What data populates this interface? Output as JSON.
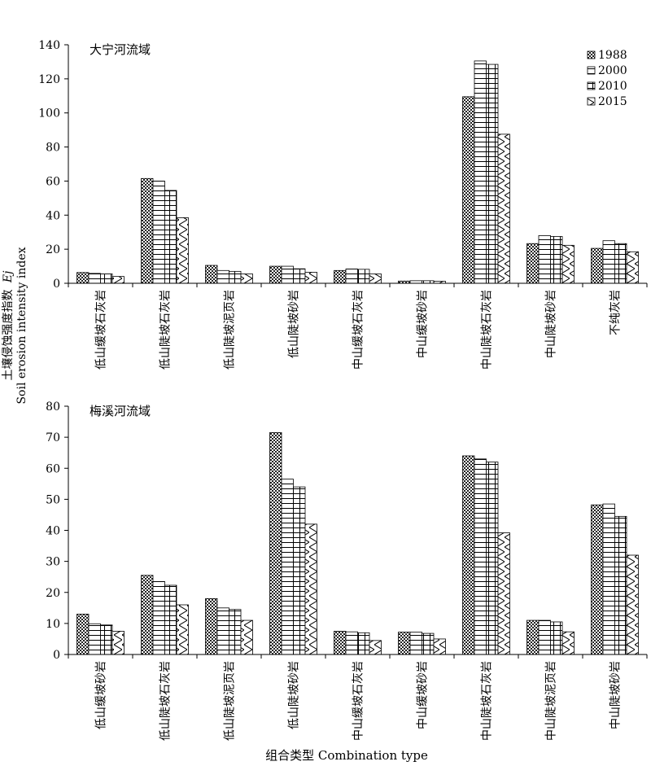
{
  "figure": {
    "ylabel_cn": "土壤侵蚀强度指数",
    "ylabel_var": "Ej",
    "ylabel_en": "Soil erosion intensity index",
    "xlabel": "组合类型 Combination type"
  },
  "legend": {
    "entries": [
      "1988",
      "2000",
      "2010",
      "2015"
    ],
    "placement": "top-right"
  },
  "chart_data": [
    {
      "type": "bar",
      "title": "大宁河流域",
      "categories": [
        "低山缓坡石灰岩",
        "低山陡坡石灰岩",
        "低山陡坡泥页岩",
        "低山陡坡砂岩",
        "中山缓坡石灰岩",
        "中山缓坡砂岩",
        "中山陡坡石灰岩",
        "中山陡坡砂岩",
        "不纯灰岩"
      ],
      "series": [
        {
          "name": "1988",
          "values": [
            6.3,
            61.5,
            10.5,
            10.0,
            7.5,
            1.3,
            109.5,
            23.3,
            20.5
          ]
        },
        {
          "name": "2000",
          "values": [
            5.8,
            60.0,
            7.5,
            10.0,
            8.4,
            1.5,
            130.5,
            28.0,
            25.0
          ]
        },
        {
          "name": "2010",
          "values": [
            5.5,
            54.5,
            7.0,
            8.5,
            8.2,
            1.5,
            128.5,
            27.5,
            23.3
          ]
        },
        {
          "name": "2015",
          "values": [
            4.0,
            38.5,
            5.5,
            6.5,
            5.5,
            1.2,
            87.5,
            22.3,
            18.5
          ]
        }
      ],
      "ylim": [
        0,
        140
      ],
      "yticks": [
        0,
        20,
        40,
        60,
        80,
        100,
        120,
        140
      ]
    },
    {
      "type": "bar",
      "title": "梅溪河流域",
      "categories": [
        "低山缓坡砂岩",
        "低山陡坡石灰岩",
        "低山陡坡泥页岩",
        "低山陡坡砂岩",
        "中山缓坡石灰岩",
        "中山缓坡砂岩",
        "中山陡坡石灰岩",
        "中山陡坡泥页岩",
        "中山陡坡砂岩"
      ],
      "series": [
        {
          "name": "1988",
          "values": [
            13.0,
            25.5,
            18.0,
            71.5,
            7.5,
            7.2,
            64.0,
            11.0,
            48.2
          ]
        },
        {
          "name": "2000",
          "values": [
            9.9,
            23.5,
            15.0,
            56.5,
            7.3,
            7.2,
            63.0,
            11.0,
            48.5
          ]
        },
        {
          "name": "2010",
          "values": [
            9.5,
            22.3,
            14.5,
            54.0,
            7.0,
            6.8,
            62.0,
            10.5,
            44.5
          ]
        },
        {
          "name": "2015",
          "values": [
            7.5,
            16.0,
            11.0,
            42.0,
            4.5,
            5.0,
            39.2,
            7.3,
            32.0
          ]
        }
      ],
      "ylim": [
        0,
        80
      ],
      "yticks": [
        0,
        10,
        20,
        30,
        40,
        50,
        60,
        70,
        80
      ]
    }
  ]
}
